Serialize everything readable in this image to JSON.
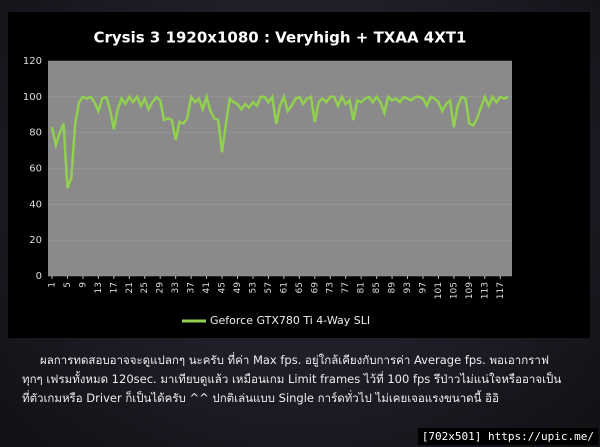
{
  "chart_data": {
    "type": "line",
    "title": "Crysis 3 1920x1080 : Veryhigh + TXAA 4XT1",
    "x": [
      1,
      2,
      3,
      4,
      5,
      6,
      7,
      8,
      9,
      10,
      11,
      12,
      13,
      14,
      15,
      16,
      17,
      18,
      19,
      20,
      21,
      22,
      23,
      24,
      25,
      26,
      27,
      28,
      29,
      30,
      31,
      32,
      33,
      34,
      35,
      36,
      37,
      38,
      39,
      40,
      41,
      42,
      43,
      44,
      45,
      46,
      47,
      48,
      49,
      50,
      51,
      52,
      53,
      54,
      55,
      56,
      57,
      58,
      59,
      60,
      61,
      62,
      63,
      64,
      65,
      66,
      67,
      68,
      69,
      70,
      71,
      72,
      73,
      74,
      75,
      76,
      77,
      78,
      79,
      80,
      81,
      82,
      83,
      84,
      85,
      86,
      87,
      88,
      89,
      90,
      91,
      92,
      93,
      94,
      95,
      96,
      97,
      98,
      99,
      100,
      101,
      102,
      103,
      104,
      105,
      106,
      107,
      108,
      109,
      110,
      111,
      112,
      113,
      114,
      115,
      116,
      117,
      118,
      119
    ],
    "series": [
      {
        "name": "Geforce GTX780 Ti 4-Way SLI",
        "color": "#92d050",
        "values": [
          83,
          73,
          80,
          85,
          49,
          55,
          85,
          97,
          100,
          99,
          100,
          97,
          92,
          99,
          100,
          93,
          82,
          93,
          99,
          96,
          100,
          97,
          100,
          95,
          99,
          93,
          97,
          100,
          98,
          87,
          88,
          87,
          76,
          86,
          85,
          88,
          100,
          97,
          99,
          93,
          100,
          92,
          88,
          87,
          69,
          85,
          99,
          97,
          96,
          93,
          96,
          94,
          97,
          95,
          100,
          100,
          97,
          100,
          85,
          95,
          100,
          92,
          95,
          99,
          100,
          96,
          99,
          100,
          86,
          97,
          99,
          97,
          100,
          100,
          95,
          100,
          96,
          98,
          87,
          98,
          97,
          99,
          100,
          97,
          100,
          97,
          91,
          100,
          98,
          99,
          97,
          100,
          99,
          98,
          100,
          100,
          99,
          95,
          100,
          99,
          97,
          92,
          96,
          98,
          83,
          95,
          100,
          99,
          85,
          84,
          88,
          94,
          100,
          95,
          100,
          97,
          100,
          99,
          100
        ]
      }
    ],
    "xlim": [
      1,
      119
    ],
    "xticks": [
      1,
      5,
      9,
      13,
      17,
      21,
      25,
      29,
      33,
      37,
      41,
      45,
      49,
      53,
      57,
      61,
      65,
      69,
      73,
      77,
      81,
      85,
      89,
      93,
      97,
      101,
      105,
      109,
      113,
      117
    ],
    "ylim": [
      0,
      120
    ],
    "yticks": [
      0,
      20,
      40,
      60,
      80,
      100,
      120
    ],
    "grid": true
  },
  "caption": {
    "lines": [
      "ผลการทดสอบอาจจะดูแปลกๆ นะครับ ที่ค่า Max fps. อยู่ใกล้เคียงกับการค่า Average fps. พอเอากราฟ",
      "ทุกๆ เฟรมทั้งหมด 120sec. มาเทียบดูแล้ว เหมือนเกม Limit frames ไว้ที่ 100 fps รึป่าวไม่แน่ใจหรืออาจเป็น",
      "ที่ตัวเกมหรือ Driver ก็เป็นได้ครับ ^^ ปกติเล่นแบบ Single การ์ดทั่วไป ไม่เคยเจอแรงขนาดนี้ อิอิ"
    ]
  },
  "watermark": "[702x501] https://upic.me/"
}
